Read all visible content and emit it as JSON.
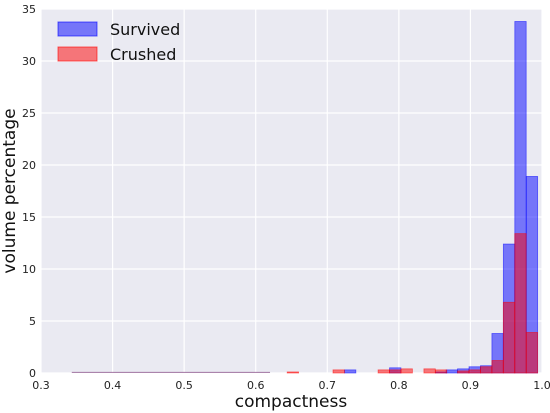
{
  "chart_data": {
    "type": "bar",
    "title": "",
    "xlabel": "compactness",
    "ylabel": "volume percentage",
    "xlim": [
      0.3,
      1.0
    ],
    "ylim": [
      0,
      35
    ],
    "xticks": [
      "0.3",
      "0.4",
      "0.5",
      "0.6",
      "0.7",
      "0.8",
      "0.9",
      "1.0"
    ],
    "yticks": [
      "0",
      "5",
      "10",
      "15",
      "20",
      "25",
      "30",
      "35"
    ],
    "grid": true,
    "legend_position": "top-left",
    "bin_width": 0.0159,
    "series": [
      {
        "name": "Survived",
        "color": "#0000ff",
        "opacity": 0.5,
        "bins": [
          {
            "x": 0.724,
            "y": 0.3
          },
          {
            "x": 0.787,
            "y": 0.5
          },
          {
            "x": 0.851,
            "y": 0.1
          },
          {
            "x": 0.866,
            "y": 0.3
          },
          {
            "x": 0.882,
            "y": 0.4
          },
          {
            "x": 0.898,
            "y": 0.6
          },
          {
            "x": 0.914,
            "y": 0.7
          },
          {
            "x": 0.93,
            "y": 3.8
          },
          {
            "x": 0.946,
            "y": 12.4
          },
          {
            "x": 0.962,
            "y": 33.8
          },
          {
            "x": 0.978,
            "y": 18.9
          }
        ]
      },
      {
        "name": "Crushed",
        "color": "#ff0000",
        "opacity": 0.5,
        "bins": [
          {
            "x": 0.644,
            "y": 0.1
          },
          {
            "x": 0.708,
            "y": 0.3
          },
          {
            "x": 0.771,
            "y": 0.3
          },
          {
            "x": 0.787,
            "y": 0.3
          },
          {
            "x": 0.803,
            "y": 0.4
          },
          {
            "x": 0.835,
            "y": 0.4
          },
          {
            "x": 0.851,
            "y": 0.3
          },
          {
            "x": 0.882,
            "y": 0.2
          },
          {
            "x": 0.898,
            "y": 0.3
          },
          {
            "x": 0.914,
            "y": 0.6
          },
          {
            "x": 0.93,
            "y": 1.2
          },
          {
            "x": 0.946,
            "y": 6.8
          },
          {
            "x": 0.962,
            "y": 13.4
          },
          {
            "x": 0.978,
            "y": 3.9
          }
        ]
      }
    ],
    "baseline_stub": {
      "x_start": 0.343,
      "x_end": 0.62
    }
  }
}
